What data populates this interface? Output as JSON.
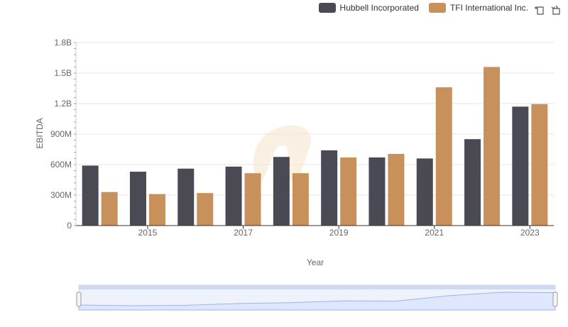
{
  "chart_data": {
    "type": "bar",
    "title": "",
    "xlabel": "Year",
    "ylabel": "EBITDA",
    "categories": [
      "2014",
      "2015",
      "2016",
      "2017",
      "2018",
      "2019",
      "2020",
      "2021",
      "2022",
      "2023"
    ],
    "x_tick_labels": [
      "2015",
      "2017",
      "2019",
      "2021",
      "2023"
    ],
    "y_ticks": [
      0,
      300000000,
      600000000,
      900000000,
      1200000000,
      1500000000,
      1800000000
    ],
    "y_tick_labels": [
      "0",
      "300M",
      "600M",
      "900M",
      "1.2B",
      "1.5B",
      "1.8B"
    ],
    "ylim": [
      0,
      1800000000
    ],
    "grid": true,
    "legend_position": "top-right",
    "series": [
      {
        "name": "Hubbell Incorporated",
        "color": "#4a4a55",
        "values": [
          590000000,
          530000000,
          560000000,
          580000000,
          675000000,
          740000000,
          670000000,
          660000000,
          850000000,
          1170000000
        ]
      },
      {
        "name": "TFI International Inc.",
        "color": "#c8915b",
        "values": [
          330000000,
          310000000,
          320000000,
          515000000,
          515000000,
          670000000,
          705000000,
          1360000000,
          1560000000,
          1195000000
        ]
      }
    ]
  },
  "legend": {
    "items": [
      {
        "label": "Hubbell Incorporated",
        "color": "#4a4a55"
      },
      {
        "label": "TFI International Inc.",
        "color": "#c8915b"
      }
    ]
  },
  "navigator": {
    "handle_color": "#cfd8f0",
    "fill_color": "#dfe7ff",
    "line_color": "#9fb3e8"
  }
}
